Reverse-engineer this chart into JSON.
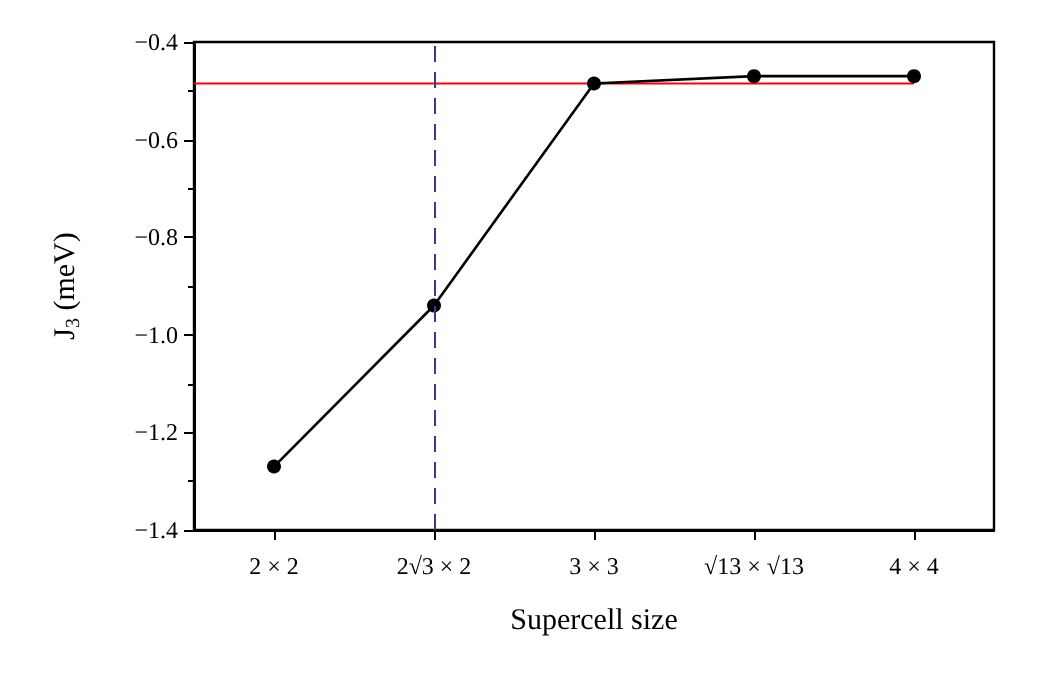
{
  "chart_data": {
    "type": "line",
    "xlabel": "Supercell size",
    "ylabel": "J$_{3}$ (meV)",
    "categories": [
      "2 × 2",
      "2√3 × 2",
      "3 × 3",
      "√13 × √13",
      "4 × 4"
    ],
    "series": [
      {
        "color": "#000000",
        "values": [
          -1.27,
          -0.94,
          -0.485,
          -0.47,
          -0.47
        ]
      }
    ],
    "ylim": [
      -1.4,
      -0.4
    ],
    "yticks": [
      {
        "value": -1.4,
        "label": "−1.4"
      },
      {
        "value": -1.2,
        "label": "−1.2"
      },
      {
        "value": -1.0,
        "label": "−1.0"
      },
      {
        "value": -0.8,
        "label": "−0.8"
      },
      {
        "value": -0.6,
        "label": "−0.6"
      },
      {
        "value": -0.4,
        "label": "−0.4"
      }
    ],
    "ref_lines": [
      {
        "axis": "y",
        "value": -0.485,
        "color": "#ff0000",
        "line_style": "solid"
      },
      {
        "axis": "x",
        "value": "2√3 × 2",
        "color": "#3a3a8c",
        "line_style": "dashed"
      }
    ],
    "marker": "circle",
    "line_style": "solid",
    "grid": false
  }
}
